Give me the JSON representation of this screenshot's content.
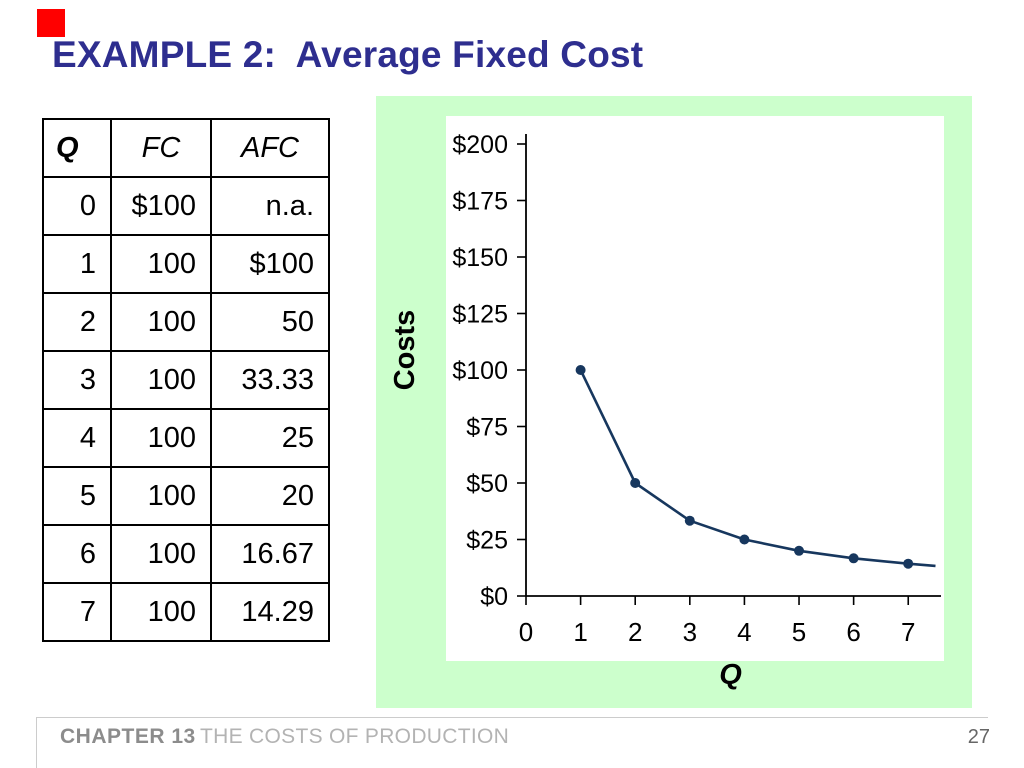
{
  "slide": {
    "title": "EXAMPLE 2:  Average Fixed Cost",
    "footer": {
      "chapter": "CHAPTER 13",
      "book_title": "THE COSTS OF PRODUCTION",
      "page_number": "27"
    }
  },
  "table": {
    "headers": [
      "Q",
      "FC",
      "AFC"
    ],
    "rows": [
      [
        "0",
        "$100",
        "n.a."
      ],
      [
        "1",
        "100",
        "$100"
      ],
      [
        "2",
        "100",
        "50"
      ],
      [
        "3",
        "100",
        "33.33"
      ],
      [
        "4",
        "100",
        "25"
      ],
      [
        "5",
        "100",
        "20"
      ],
      [
        "6",
        "100",
        "16.67"
      ],
      [
        "7",
        "100",
        "14.29"
      ]
    ]
  },
  "chart_data": {
    "type": "line",
    "title": "",
    "xlabel": "Q",
    "ylabel": "Costs",
    "x": [
      1,
      2,
      3,
      4,
      5,
      6,
      7
    ],
    "series": [
      {
        "name": "AFC",
        "values": [
          100,
          50,
          33.33,
          25,
          20,
          16.67,
          14.29
        ]
      }
    ],
    "line_extension": {
      "x": 7.5,
      "value": 13.33
    },
    "x_ticks": [
      0,
      1,
      2,
      3,
      4,
      5,
      6,
      7
    ],
    "y_ticks": [
      "$0",
      "$25",
      "$50",
      "$75",
      "$100",
      "$125",
      "$150",
      "$175",
      "$200"
    ],
    "ylim": [
      0,
      200
    ],
    "xlim": [
      0,
      7.6
    ],
    "grid": false,
    "legend": "none",
    "line_color": "#17375E",
    "marker": "circle",
    "panel_background": "#CCFFCC",
    "plot_background": "#FFFFFF"
  },
  "colors": {
    "title": "#2E2E8F",
    "accent_square": "#FF0000",
    "footer_chapter": "#8C8C8C",
    "footer_title": "#B3B3B3",
    "footer_page": "#666666",
    "footer_rule": "#CCCCCC"
  }
}
